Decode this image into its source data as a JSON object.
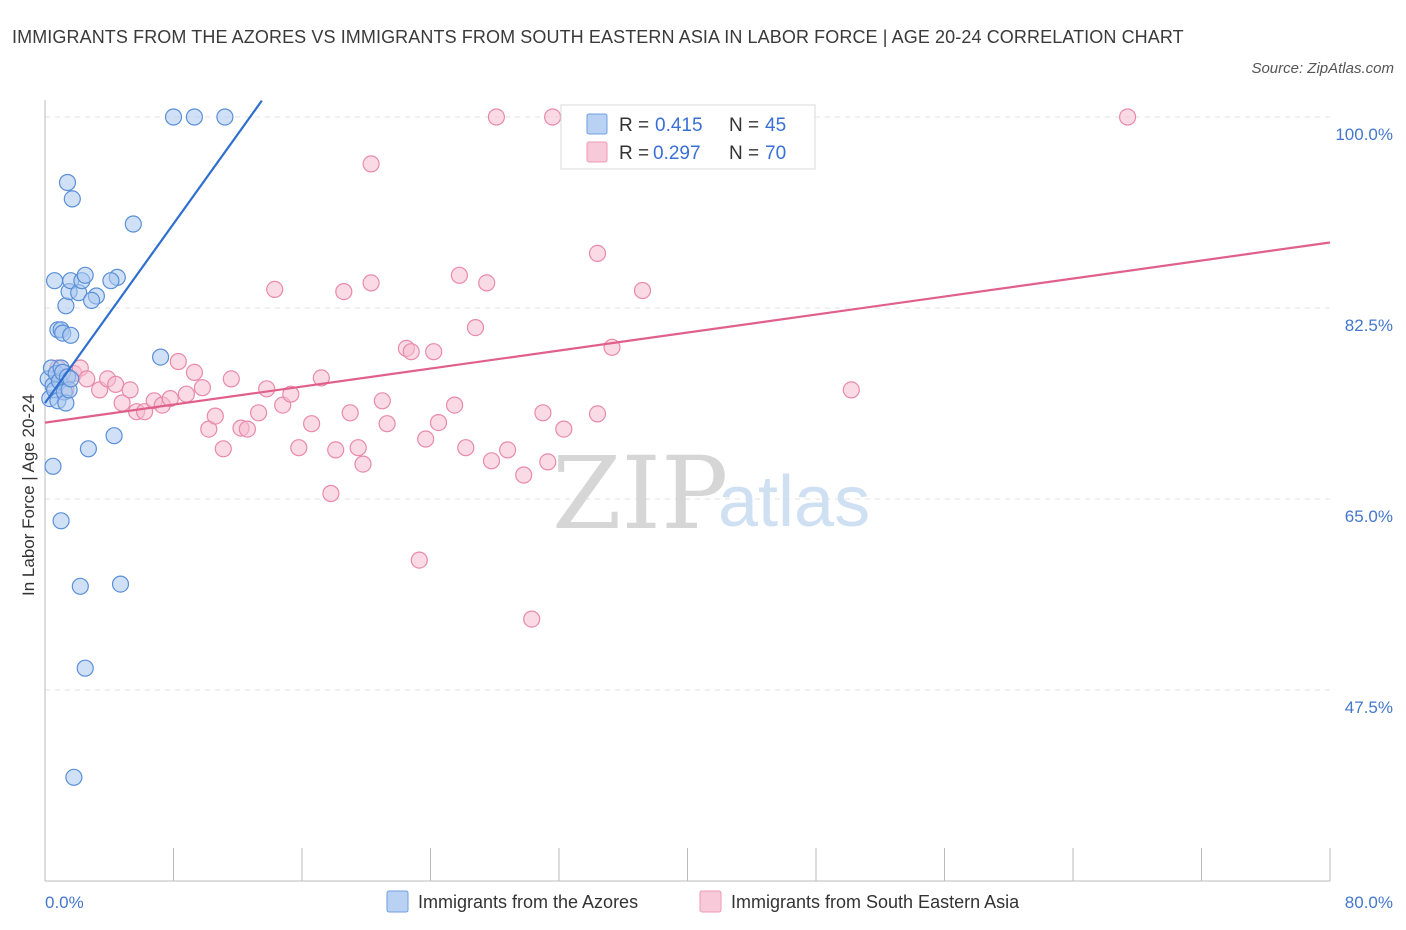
{
  "title": "IMMIGRANTS FROM THE AZORES VS IMMIGRANTS FROM SOUTH EASTERN ASIA IN LABOR FORCE | AGE 20-24 CORRELATION CHART",
  "source": "Source: ZipAtlas.com",
  "legend": {
    "r_label": "R =",
    "n_label": "N =",
    "series1": {
      "r": "0.415",
      "n": "45"
    },
    "series2": {
      "r": "0.297",
      "n": "70"
    }
  },
  "watermark": {
    "zip": "ZIP",
    "atlas": "atlas"
  },
  "colors": {
    "series1_fill": "#a9c8f0",
    "series1_stroke": "#5a8fd8",
    "series1_line": "#2f6fcf",
    "series2_fill": "#f6bccf",
    "series2_stroke": "#e88aa8",
    "series2_line": "#e0608a",
    "grid": "#e2e2e2",
    "tick_text": "#4477cc"
  },
  "chart_data": {
    "type": "scatter",
    "title": "IMMIGRANTS FROM THE AZORES VS IMMIGRANTS FROM SOUTH EASTERN ASIA IN LABOR FORCE | AGE 20-24 CORRELATION CHART",
    "xlabel": "",
    "ylabel": "In Labor Force | Age 20-24",
    "xlim": [
      0,
      80
    ],
    "ylim": [
      30,
      101.5
    ],
    "x_ticks": [
      0,
      8,
      16,
      24,
      32,
      40,
      48,
      56,
      64,
      72,
      80
    ],
    "x_tick_labels": {
      "0": "0.0%",
      "80": "80.0%"
    },
    "y_ticks": [
      47.5,
      65.0,
      82.5,
      100.0
    ],
    "y_tick_labels": [
      "47.5%",
      "65.0%",
      "82.5%",
      "100.0%"
    ],
    "legend_position": "top-center",
    "series": [
      {
        "name": "Immigrants from the Azores",
        "r": 0.415,
        "n": 45,
        "trend": {
          "x": [
            0,
            13.5
          ],
          "y": [
            73.8,
            101.5
          ]
        },
        "points": [
          [
            0.2,
            76.0
          ],
          [
            0.3,
            74.2
          ],
          [
            0.4,
            77.0
          ],
          [
            0.5,
            75.4
          ],
          [
            0.6,
            75.0
          ],
          [
            0.7,
            76.5
          ],
          [
            0.8,
            74.0
          ],
          [
            0.9,
            75.8
          ],
          [
            1.0,
            77.0
          ],
          [
            1.1,
            76.6
          ],
          [
            1.2,
            74.8
          ],
          [
            1.3,
            73.8
          ],
          [
            1.4,
            76.2
          ],
          [
            1.5,
            75.0
          ],
          [
            1.6,
            76.0
          ],
          [
            0.5,
            68.0
          ],
          [
            0.6,
            85.0
          ],
          [
            0.8,
            80.5
          ],
          [
            1.0,
            80.5
          ],
          [
            1.1,
            80.2
          ],
          [
            1.3,
            82.7
          ],
          [
            1.4,
            94.0
          ],
          [
            1.5,
            84.0
          ],
          [
            1.6,
            85.0
          ],
          [
            1.7,
            92.5
          ],
          [
            1.6,
            80.0
          ],
          [
            2.1,
            83.9
          ],
          [
            2.3,
            85.0
          ],
          [
            2.5,
            85.5
          ],
          [
            3.2,
            83.6
          ],
          [
            2.9,
            83.2
          ],
          [
            4.5,
            85.3
          ],
          [
            4.1,
            85.0
          ],
          [
            5.5,
            90.2
          ],
          [
            7.2,
            78.0
          ],
          [
            1.0,
            63.0
          ],
          [
            2.2,
            57.0
          ],
          [
            4.7,
            57.2
          ],
          [
            2.5,
            49.5
          ],
          [
            1.8,
            39.5
          ],
          [
            2.7,
            69.6
          ],
          [
            4.3,
            70.8
          ],
          [
            8.0,
            100.0
          ],
          [
            9.3,
            100.0
          ],
          [
            11.2,
            100.0
          ]
        ]
      },
      {
        "name": "Immigrants from South Eastern Asia",
        "r": 0.297,
        "n": 70,
        "trend": {
          "x": [
            0,
            80
          ],
          "y": [
            72.0,
            88.5
          ]
        },
        "points": [
          [
            0.8,
            77.0
          ],
          [
            1.0,
            76.0
          ],
          [
            1.3,
            75.0
          ],
          [
            1.8,
            76.5
          ],
          [
            2.2,
            77.0
          ],
          [
            2.6,
            76.0
          ],
          [
            3.4,
            75.0
          ],
          [
            3.9,
            76.0
          ],
          [
            4.4,
            75.5
          ],
          [
            4.8,
            73.8
          ],
          [
            5.3,
            75.0
          ],
          [
            5.7,
            73.0
          ],
          [
            6.2,
            73.0
          ],
          [
            6.8,
            74.0
          ],
          [
            7.3,
            73.6
          ],
          [
            7.8,
            74.2
          ],
          [
            8.3,
            77.6
          ],
          [
            8.8,
            74.6
          ],
          [
            9.3,
            76.6
          ],
          [
            9.8,
            75.2
          ],
          [
            10.2,
            71.4
          ],
          [
            10.6,
            72.6
          ],
          [
            11.1,
            69.6
          ],
          [
            11.6,
            76.0
          ],
          [
            12.2,
            71.5
          ],
          [
            12.6,
            71.4
          ],
          [
            13.3,
            72.9
          ],
          [
            13.8,
            75.1
          ],
          [
            14.3,
            84.2
          ],
          [
            14.8,
            73.6
          ],
          [
            15.3,
            74.6
          ],
          [
            15.8,
            69.7
          ],
          [
            16.6,
            71.9
          ],
          [
            17.2,
            76.1
          ],
          [
            17.8,
            65.5
          ],
          [
            18.1,
            69.5
          ],
          [
            18.6,
            84.0
          ],
          [
            19.0,
            72.9
          ],
          [
            19.5,
            69.7
          ],
          [
            19.8,
            68.2
          ],
          [
            20.3,
            84.8
          ],
          [
            21.0,
            74.0
          ],
          [
            21.3,
            71.9
          ],
          [
            22.5,
            78.8
          ],
          [
            22.8,
            78.5
          ],
          [
            23.3,
            59.4
          ],
          [
            23.7,
            70.5
          ],
          [
            24.2,
            78.5
          ],
          [
            24.5,
            72.0
          ],
          [
            25.5,
            73.6
          ],
          [
            25.8,
            85.5
          ],
          [
            26.2,
            69.7
          ],
          [
            26.8,
            80.7
          ],
          [
            27.5,
            84.8
          ],
          [
            27.8,
            68.5
          ],
          [
            28.8,
            69.5
          ],
          [
            29.8,
            67.2
          ],
          [
            31.0,
            72.9
          ],
          [
            31.3,
            68.4
          ],
          [
            30.3,
            54.0
          ],
          [
            32.3,
            71.4
          ],
          [
            34.4,
            87.5
          ],
          [
            34.4,
            72.8
          ],
          [
            35.3,
            78.9
          ],
          [
            37.2,
            84.1
          ],
          [
            50.2,
            75.0
          ],
          [
            20.3,
            95.7
          ],
          [
            28.1,
            100.0
          ],
          [
            31.6,
            100.0
          ],
          [
            67.4,
            100.0
          ]
        ]
      }
    ]
  },
  "bottom_legend": [
    "Immigrants from the Azores",
    "Immigrants from South Eastern Asia"
  ]
}
